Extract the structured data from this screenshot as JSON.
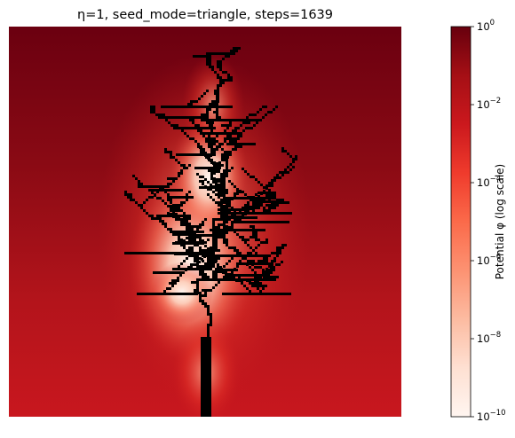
{
  "title": "η=1, seed_mode=triangle, steps=1639",
  "colorbar": {
    "label": "Potential φ (log scale)",
    "ticks": [
      {
        "base": "10",
        "exp": "0"
      },
      {
        "base": "10",
        "exp": "−2"
      },
      {
        "base": "10",
        "exp": "−4"
      },
      {
        "base": "10",
        "exp": "−6"
      },
      {
        "base": "10",
        "exp": "−8"
      },
      {
        "base": "10",
        "exp": "−10"
      }
    ]
  },
  "chart_data": {
    "type": "heatmap",
    "title": "η=1, seed_mode=triangle, steps=1639",
    "colormap": "Reds",
    "color_scale": "log",
    "color_range": [
      1e-10,
      1
    ],
    "colorbar_label": "Potential φ (log scale)",
    "colorbar_ticks": [
      1,
      0.01,
      0.0001,
      1e-06,
      1e-08,
      1e-10
    ],
    "axes_visible": false,
    "grid": false,
    "overlay": "black DLA-style branching cluster growing upward from the bottom center",
    "steps": 1639,
    "eta": 1,
    "seed_mode": "triangle"
  },
  "colors": {
    "dark": "#67000d",
    "mid": "#ca181d",
    "light": "#fcae91",
    "white": "#fff5f0",
    "cluster": "#000000"
  }
}
